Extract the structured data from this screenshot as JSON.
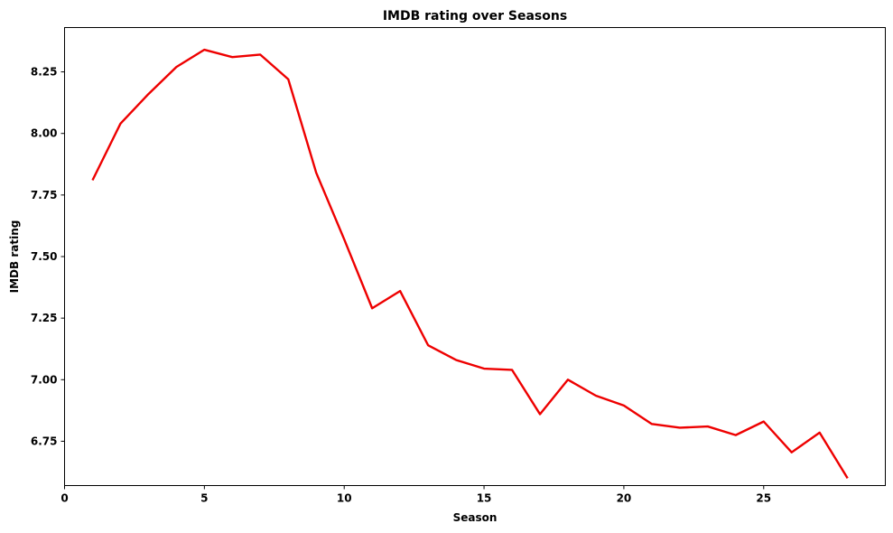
{
  "chart_data": {
    "type": "line",
    "title": "IMDB rating over Seasons",
    "xlabel": "Season",
    "ylabel": "IMDB rating",
    "xlim": [
      0,
      29.35
    ],
    "ylim": [
      6.57,
      8.43
    ],
    "xticks": [
      0,
      5,
      10,
      15,
      20,
      25
    ],
    "xtick_labels": [
      "0",
      "5",
      "10",
      "15",
      "20",
      "25"
    ],
    "yticks": [
      6.75,
      7.0,
      7.25,
      7.5,
      7.75,
      8.0,
      8.25
    ],
    "ytick_labels": [
      "6.75",
      "7.00",
      "7.25",
      "7.50",
      "7.75",
      "8.00",
      "8.25"
    ],
    "grid": false,
    "series": [
      {
        "color": "#ee0000",
        "x": [
          1,
          2,
          3,
          4,
          5,
          6,
          7,
          8,
          9,
          10,
          11,
          12,
          13,
          14,
          15,
          16,
          17,
          18,
          19,
          20,
          21,
          22,
          23,
          24,
          25,
          26,
          27,
          28
        ],
        "y": [
          7.81,
          8.04,
          8.16,
          8.27,
          8.34,
          8.31,
          8.32,
          8.22,
          7.84,
          7.57,
          7.29,
          7.36,
          7.14,
          7.08,
          7.045,
          7.04,
          6.86,
          7.0,
          6.935,
          6.895,
          6.82,
          6.805,
          6.81,
          6.775,
          6.83,
          6.705,
          6.785,
          6.6
        ]
      }
    ]
  }
}
